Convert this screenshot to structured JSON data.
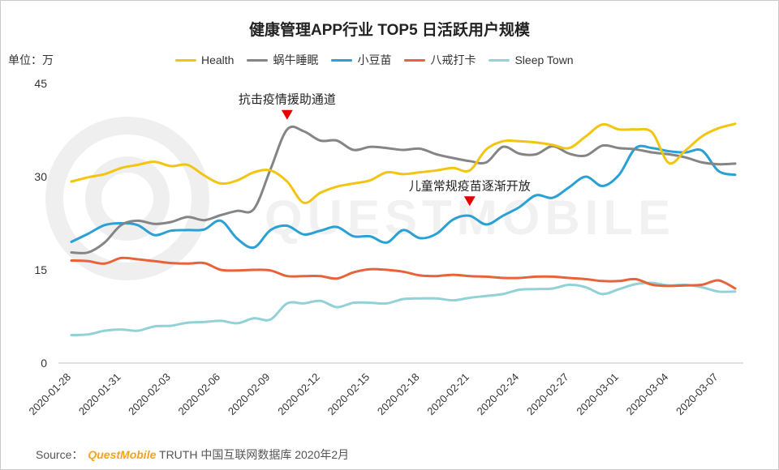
{
  "title": "健康管理APP行业 TOP5 日活跃用户规模",
  "unit": "单位：万",
  "watermark": "QUESTMOBILE",
  "source": {
    "prefix": "Source：",
    "brand": "QuestMobile",
    "text": "TRUTH 中国互联网数据库 2020年2月"
  },
  "colors": {
    "health": "#f2c511",
    "woniu": "#858585",
    "xiaodoumiao": "#2aa0d4",
    "bajie": "#e8623a",
    "sleeptown": "#92d2d6",
    "marker": "#e60000"
  },
  "chart_data": {
    "type": "line",
    "ylim": [
      0,
      45
    ],
    "yticks": [
      0,
      15,
      30,
      45
    ],
    "xlabel": "",
    "ylabel": "单位：万",
    "legend_position": "top",
    "x": [
      "2020-01-28",
      "2020-01-29",
      "2020-01-30",
      "2020-01-31",
      "2020-02-01",
      "2020-02-02",
      "2020-02-03",
      "2020-02-04",
      "2020-02-05",
      "2020-02-06",
      "2020-02-07",
      "2020-02-08",
      "2020-02-09",
      "2020-02-10",
      "2020-02-11",
      "2020-02-12",
      "2020-02-13",
      "2020-02-14",
      "2020-02-15",
      "2020-02-16",
      "2020-02-17",
      "2020-02-18",
      "2020-02-19",
      "2020-02-20",
      "2020-02-21",
      "2020-02-22",
      "2020-02-23",
      "2020-02-24",
      "2020-02-25",
      "2020-02-26",
      "2020-02-27",
      "2020-02-28",
      "2020-02-29",
      "2020-03-01",
      "2020-03-02",
      "2020-03-03",
      "2020-03-04",
      "2020-03-05",
      "2020-03-06",
      "2020-03-07",
      "2020-03-08"
    ],
    "xtick_labels": [
      "2020-01-28",
      "2020-01-31",
      "2020-02-03",
      "2020-02-06",
      "2020-02-09",
      "2020-02-12",
      "2020-02-15",
      "2020-02-18",
      "2020-02-21",
      "2020-02-24",
      "2020-02-27",
      "2020-03-01",
      "2020-03-04",
      "2020-03-07"
    ],
    "series": [
      {
        "name": "Health",
        "key": "health",
        "values": [
          29.2,
          29.9,
          30.4,
          31.4,
          31.9,
          32.4,
          31.7,
          31.9,
          30.2,
          28.9,
          29.4,
          30.7,
          31.0,
          29.2,
          25.8,
          27.4,
          28.4,
          28.9,
          29.4,
          30.7,
          30.4,
          30.7,
          31.0,
          31.4,
          31.0,
          34.4,
          35.7,
          35.7,
          35.5,
          35.1,
          34.6,
          36.5,
          38.4,
          37.6,
          37.6,
          37.1,
          32.2,
          34.2,
          36.5,
          37.8,
          38.5
        ]
      },
      {
        "name": "蜗牛睡眠",
        "key": "woniu",
        "values": [
          17.8,
          17.8,
          19.4,
          22.2,
          22.9,
          22.4,
          22.7,
          23.5,
          23.0,
          23.8,
          24.5,
          24.8,
          31.2,
          37.6,
          37.3,
          35.8,
          35.8,
          34.3,
          34.8,
          34.6,
          34.3,
          34.5,
          33.6,
          33.0,
          32.5,
          32.3,
          34.8,
          33.7,
          33.6,
          34.9,
          33.7,
          33.4,
          35.0,
          34.6,
          34.4,
          33.9,
          33.6,
          33.1,
          32.3,
          32.0,
          32.1
        ]
      },
      {
        "name": "小豆苗",
        "key": "xiaodoumiao",
        "values": [
          19.5,
          20.8,
          22.2,
          22.5,
          22.2,
          20.6,
          21.3,
          21.4,
          21.5,
          22.9,
          20.0,
          18.6,
          21.4,
          22.1,
          20.7,
          21.3,
          21.9,
          20.4,
          20.4,
          19.4,
          21.4,
          20.1,
          20.8,
          23.1,
          23.7,
          22.3,
          23.7,
          25.1,
          27.0,
          26.6,
          28.3,
          30.0,
          28.5,
          30.3,
          34.6,
          34.6,
          34.1,
          33.9,
          34.2,
          30.9,
          30.3
        ]
      },
      {
        "name": "八戒打卡",
        "key": "bajie",
        "values": [
          16.5,
          16.4,
          16.0,
          16.9,
          16.7,
          16.4,
          16.1,
          16.0,
          16.1,
          15.0,
          14.9,
          15.0,
          14.9,
          14.0,
          14.0,
          14.0,
          13.6,
          14.6,
          15.1,
          15.0,
          14.7,
          14.1,
          14.0,
          14.2,
          14.0,
          13.9,
          13.7,
          13.7,
          13.9,
          13.9,
          13.7,
          13.5,
          13.2,
          13.2,
          13.5,
          12.6,
          12.4,
          12.5,
          12.6,
          13.3,
          12.0
        ]
      },
      {
        "name": "Sleep Town",
        "key": "sleeptown",
        "values": [
          4.5,
          4.6,
          5.2,
          5.4,
          5.2,
          5.9,
          6.0,
          6.5,
          6.6,
          6.8,
          6.4,
          7.2,
          7.0,
          9.6,
          9.6,
          10.0,
          9.0,
          9.7,
          9.7,
          9.6,
          10.3,
          10.4,
          10.4,
          10.1,
          10.5,
          10.8,
          11.1,
          11.8,
          11.9,
          12.0,
          12.6,
          12.2,
          11.1,
          11.9,
          12.7,
          12.9,
          12.5,
          12.6,
          12.2,
          11.5,
          11.5
        ]
      }
    ],
    "annotations": [
      {
        "text": "抗击疫情援助通道",
        "x": "2020-02-10",
        "y": 37.6
      },
      {
        "text": "儿童常规疫苗逐渐开放",
        "x": "2020-02-21",
        "y": 23.7
      }
    ]
  }
}
